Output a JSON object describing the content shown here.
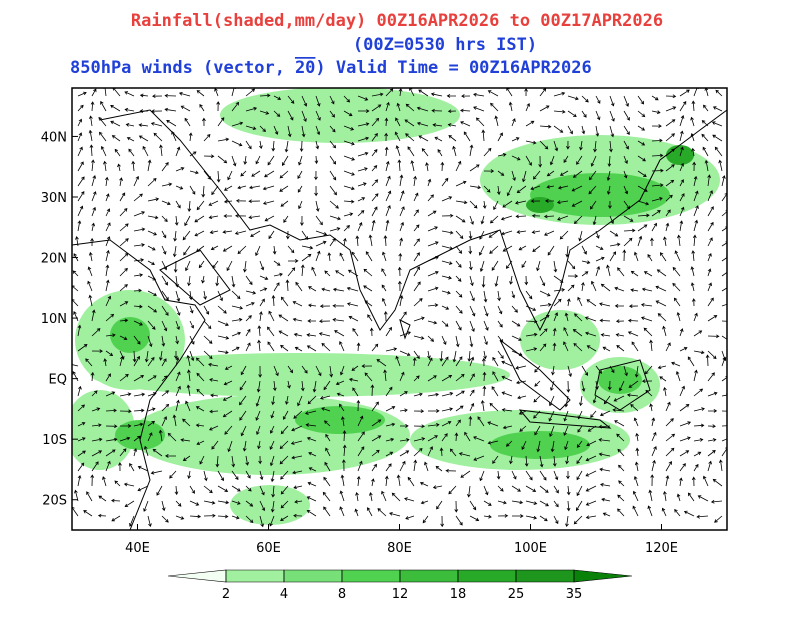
{
  "header": {
    "line1": "Rainfall(shaded,mm/day) 00Z16APR2026 to 00Z17APR2026",
    "line2": "(00Z=0530 hrs IST)",
    "line3_left": "850hPa winds (vector,",
    "line3_ref": "20",
    "line3_right": ")  Valid Time = 00Z16APR2026"
  },
  "map": {
    "lon_range": [
      30,
      130
    ],
    "lat_range": [
      -25,
      48
    ],
    "lon_ticks": [
      {
        "value": 40,
        "label": "40E"
      },
      {
        "value": 60,
        "label": "60E"
      },
      {
        "value": 80,
        "label": "80E"
      },
      {
        "value": 100,
        "label": "100E"
      },
      {
        "value": 120,
        "label": "120E"
      }
    ],
    "lat_ticks": [
      {
        "value": 40,
        "label": "40N"
      },
      {
        "value": 30,
        "label": "30N"
      },
      {
        "value": 20,
        "label": "20N"
      },
      {
        "value": 10,
        "label": "10N"
      },
      {
        "value": 0,
        "label": "EQ"
      },
      {
        "value": -10,
        "label": "10S"
      },
      {
        "value": -20,
        "label": "20S"
      }
    ]
  },
  "colorbar": {
    "levels": [
      2,
      4,
      8,
      12,
      18,
      25,
      35
    ],
    "colors": [
      "#f4fff4",
      "#a0f0a0",
      "#78e078",
      "#50d250",
      "#3cbe3c",
      "#28aa28",
      "#1e961e",
      "#0a820a"
    ]
  }
}
